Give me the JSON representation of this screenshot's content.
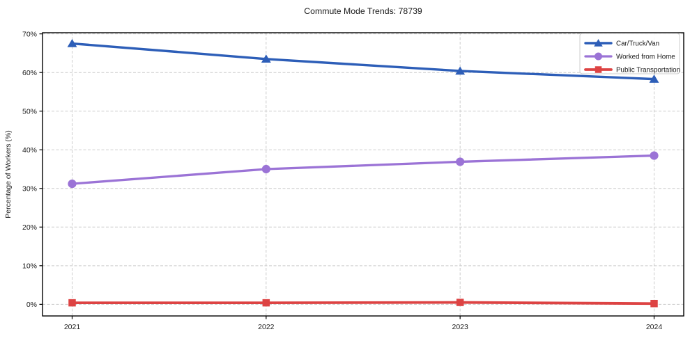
{
  "chart_data": {
    "type": "line",
    "title": "Commute Mode Trends: 78739",
    "xlabel": "",
    "ylabel": "Percentage of Workers (%)",
    "x_labels": [
      "2021",
      "2022",
      "2023",
      "2024"
    ],
    "yticks": [
      0,
      10,
      20,
      30,
      40,
      50,
      60,
      70
    ],
    "ytick_labels": [
      "0%",
      "10%",
      "20%",
      "30%",
      "40%",
      "50%",
      "60%",
      "70%"
    ],
    "ylim": [
      -3,
      70.3
    ],
    "grid": true,
    "legend_position": "upper-right",
    "series": [
      {
        "name": "Car/Truck/Van",
        "color": "#2d5eb8",
        "marker": "triangle",
        "line_width": 3.4,
        "values": [
          67.5,
          63.5,
          60.4,
          58.3
        ]
      },
      {
        "name": "Worked from Home",
        "color": "#9b73d6",
        "marker": "circle",
        "line_width": 3.3,
        "values": [
          31.2,
          35.0,
          36.9,
          38.5
        ]
      },
      {
        "name": "Public Transportation",
        "color": "#dd4343",
        "marker": "square",
        "line_width": 3.8,
        "values": [
          0.4,
          0.4,
          0.5,
          0.2
        ]
      }
    ],
    "colors": {
      "grid": "#cccccc",
      "spine": "#000000",
      "text": "#1a1a1a",
      "legend_border": "#cccccc",
      "legend_fill": "rgba(255,255,255,0.85)"
    }
  }
}
